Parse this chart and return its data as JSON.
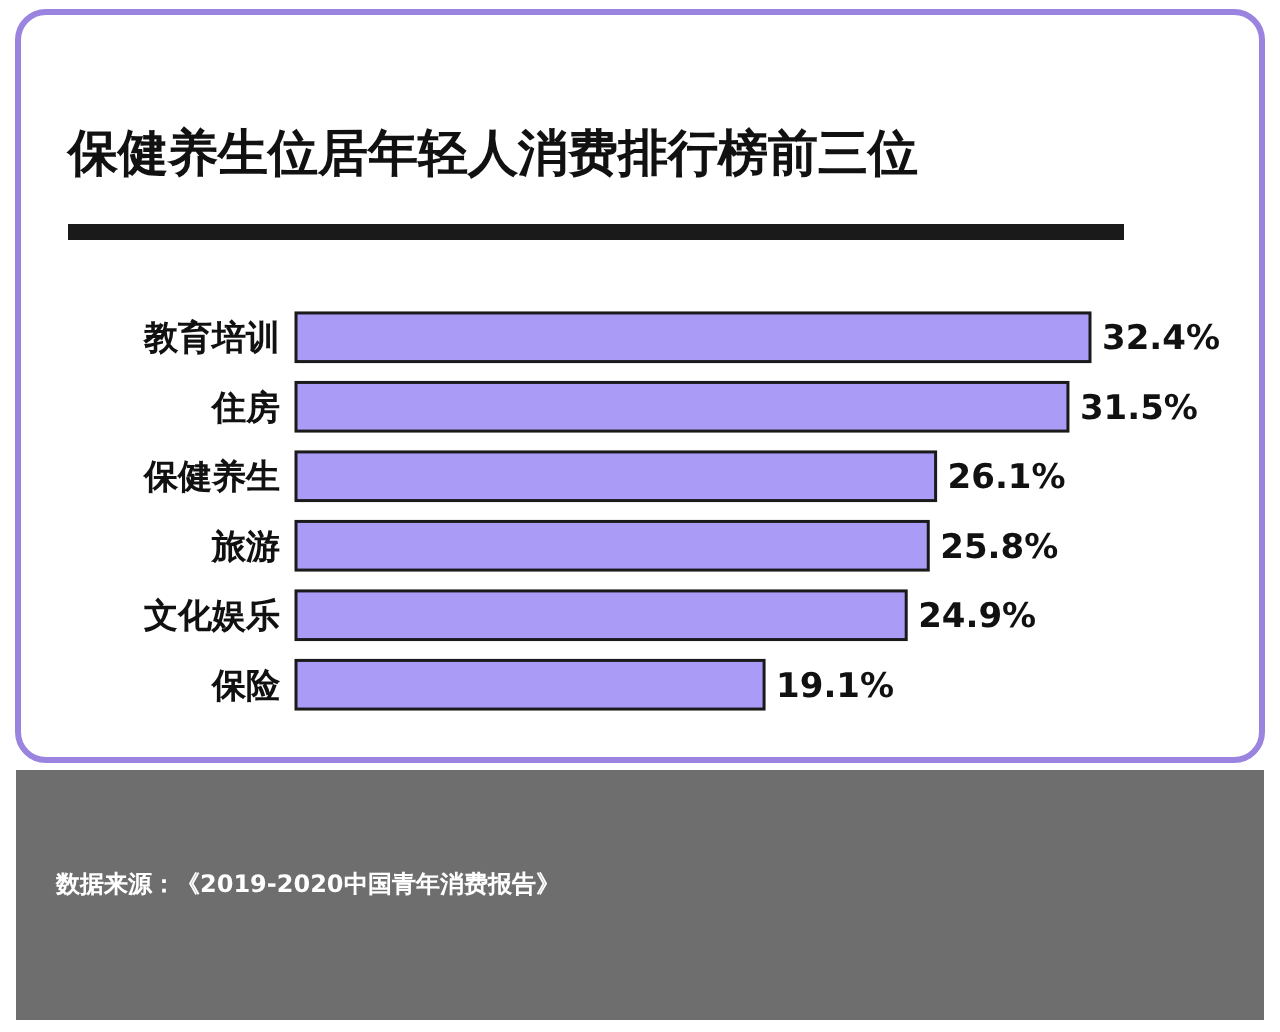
{
  "chart_data": {
    "type": "bar",
    "orientation": "horizontal",
    "title": "保健养生位居年轻人消费排行榜前三位",
    "categories": [
      "教育培训",
      "住房",
      "保健养生",
      "旅游",
      "文化娱乐",
      "保险"
    ],
    "values": [
      32.4,
      31.5,
      26.1,
      25.8,
      24.9,
      19.1
    ],
    "value_labels": [
      "32.4%",
      "31.5%",
      "26.1%",
      "25.8%",
      "24.9%",
      "19.1%"
    ],
    "color": "#a99bf6",
    "annotations": [
      "数据来源：《2019-2020中国青年消费报告》"
    ]
  }
}
